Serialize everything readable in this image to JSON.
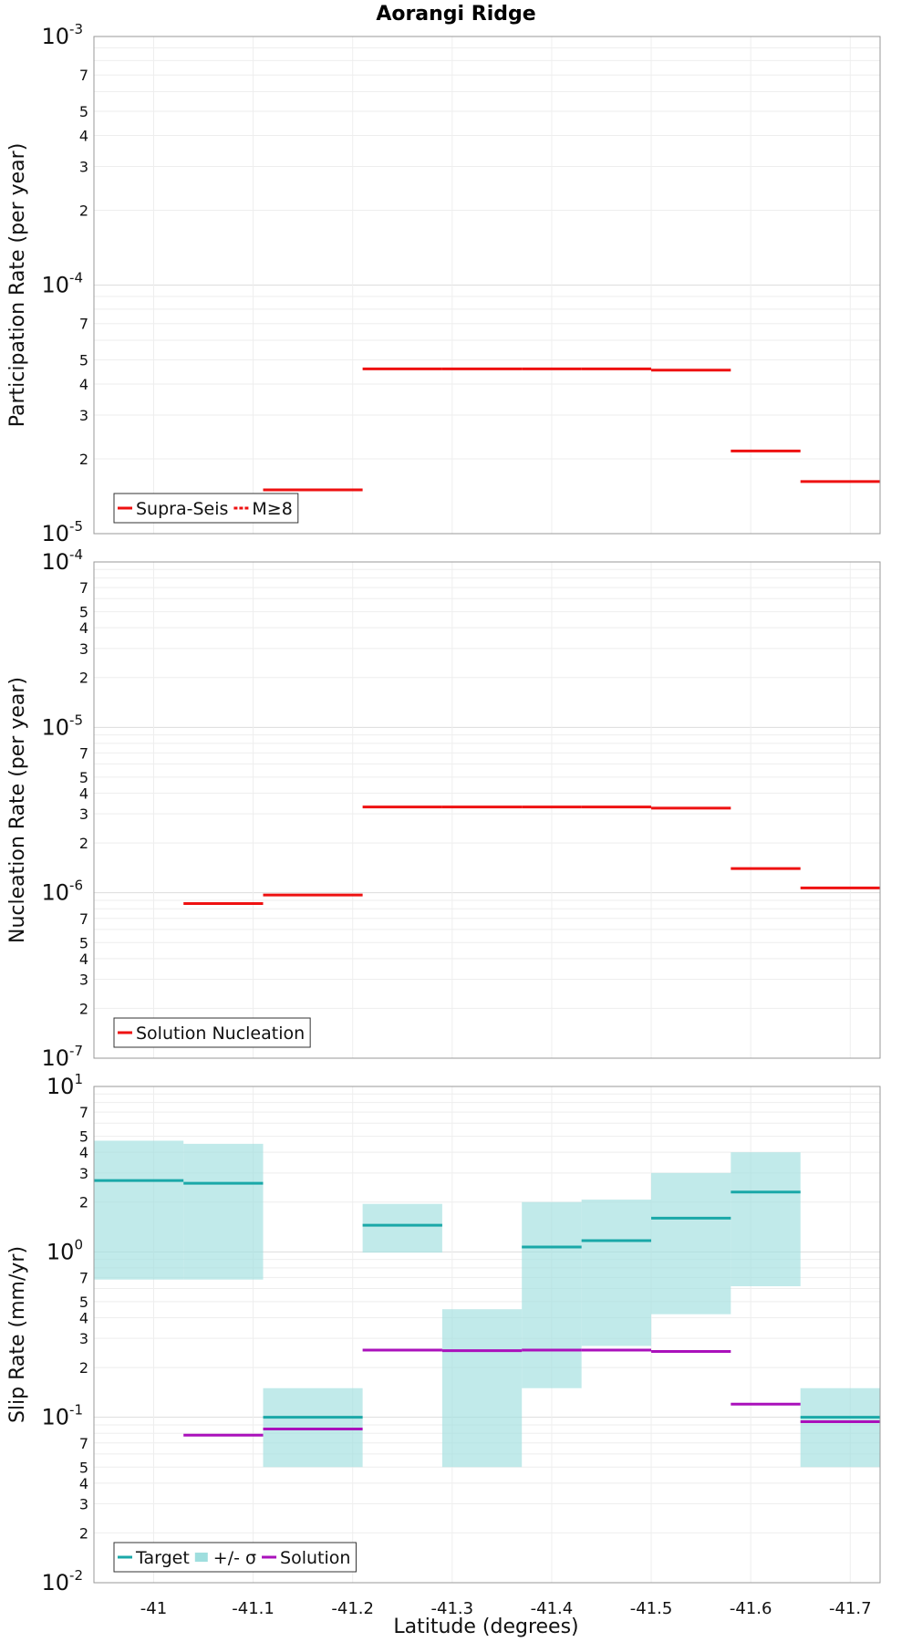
{
  "figure": {
    "title": "Aorangi Ridge",
    "xlabel": "Latitude (degrees)",
    "xticks": [
      "-41",
      "-41.1",
      "-41.2",
      "-41.3",
      "-41.4",
      "-41.5",
      "-41.6",
      "-41.7"
    ]
  },
  "colors": {
    "red": "#ee1111",
    "teal": "#1aa8a8",
    "band": "#9fdede",
    "purple": "#aa11bb"
  },
  "chart_data": [
    {
      "type": "line",
      "panel": "participation",
      "ylabel": "Participation Rate (per year)",
      "yscale": "log",
      "ylim": [
        1e-05,
        0.001
      ],
      "xlim": [
        -40.94,
        -41.73
      ],
      "legend": {
        "position": "bottom-left",
        "entries": [
          "Supra-Seis",
          "M≥8"
        ]
      },
      "series": [
        {
          "name": "Supra-Seis",
          "segments": [
            {
              "x": [
                -41.11,
                -41.21
              ],
              "y": 1.5e-05
            },
            {
              "x": [
                -41.21,
                -41.29
              ],
              "y": 4.6e-05
            },
            {
              "x": [
                -41.29,
                -41.37
              ],
              "y": 4.6e-05
            },
            {
              "x": [
                -41.37,
                -41.43
              ],
              "y": 4.6e-05
            },
            {
              "x": [
                -41.43,
                -41.5
              ],
              "y": 4.6e-05
            },
            {
              "x": [
                -41.5,
                -41.58
              ],
              "y": 4.55e-05
            },
            {
              "x": [
                -41.58,
                -41.65
              ],
              "y": 2.15e-05
            },
            {
              "x": [
                -41.65,
                -41.73
              ],
              "y": 1.62e-05
            }
          ]
        },
        {
          "name": "M≥8",
          "segments": []
        }
      ]
    },
    {
      "type": "line",
      "panel": "nucleation",
      "ylabel": "Nucleation Rate (per year)",
      "yscale": "log",
      "ylim": [
        1e-07,
        0.0001
      ],
      "xlim": [
        -40.94,
        -41.73
      ],
      "legend": {
        "position": "bottom-left",
        "entries": [
          "Solution Nucleation"
        ]
      },
      "series": [
        {
          "name": "Solution Nucleation",
          "segments": [
            {
              "x": [
                -41.03,
                -41.11
              ],
              "y": 8.6e-07
            },
            {
              "x": [
                -41.11,
                -41.21
              ],
              "y": 9.7e-07
            },
            {
              "x": [
                -41.21,
                -41.29
              ],
              "y": 3.3e-06
            },
            {
              "x": [
                -41.29,
                -41.37
              ],
              "y": 3.3e-06
            },
            {
              "x": [
                -41.37,
                -41.43
              ],
              "y": 3.3e-06
            },
            {
              "x": [
                -41.43,
                -41.5
              ],
              "y": 3.3e-06
            },
            {
              "x": [
                -41.5,
                -41.58
              ],
              "y": 3.25e-06
            },
            {
              "x": [
                -41.58,
                -41.65
              ],
              "y": 1.4e-06
            },
            {
              "x": [
                -41.65,
                -41.73
              ],
              "y": 1.07e-06
            }
          ]
        }
      ]
    },
    {
      "type": "line",
      "panel": "slip",
      "ylabel": "Slip Rate (mm/yr)",
      "yscale": "log",
      "ylim": [
        0.01,
        10
      ],
      "xlim": [
        -40.94,
        -41.73
      ],
      "legend": {
        "position": "bottom-left",
        "entries": [
          "Target",
          "+/- σ",
          "Solution"
        ]
      },
      "series": [
        {
          "name": "Target",
          "segments": [
            {
              "x": [
                -40.94,
                -41.03
              ],
              "y": 2.7,
              "low": 0.68,
              "high": 4.7
            },
            {
              "x": [
                -41.03,
                -41.11
              ],
              "y": 2.6,
              "low": 0.68,
              "high": 4.5
            },
            {
              "x": [
                -41.11,
                -41.21
              ],
              "y": 0.1,
              "low": 0.05,
              "high": 0.15
            },
            {
              "x": [
                -41.21,
                -41.29
              ],
              "y": 1.45,
              "low": 0.99,
              "high": 1.95
            },
            {
              "x": [
                -41.29,
                -41.37
              ],
              "y": null,
              "low": 0.05,
              "high": 0.45
            },
            {
              "x": [
                -41.37,
                -41.43
              ],
              "y": 1.07,
              "low": 0.15,
              "high": 2.0
            },
            {
              "x": [
                -41.43,
                -41.5
              ],
              "y": 1.17,
              "low": 0.27,
              "high": 2.07
            },
            {
              "x": [
                -41.5,
                -41.58
              ],
              "y": 1.6,
              "low": 0.42,
              "high": 3.0
            },
            {
              "x": [
                -41.58,
                -41.65
              ],
              "y": 2.3,
              "low": 0.62,
              "high": 4.0
            },
            {
              "x": [
                -41.65,
                -41.73
              ],
              "y": 0.1,
              "low": 0.05,
              "high": 0.15
            }
          ]
        },
        {
          "name": "Solution",
          "segments": [
            {
              "x": [
                -41.03,
                -41.11
              ],
              "y": 0.078
            },
            {
              "x": [
                -41.11,
                -41.21
              ],
              "y": 0.085
            },
            {
              "x": [
                -41.21,
                -41.29
              ],
              "y": 0.255
            },
            {
              "x": [
                -41.29,
                -41.37
              ],
              "y": 0.253
            },
            {
              "x": [
                -41.37,
                -41.43
              ],
              "y": 0.255
            },
            {
              "x": [
                -41.43,
                -41.5
              ],
              "y": 0.255
            },
            {
              "x": [
                -41.5,
                -41.58
              ],
              "y": 0.25
            },
            {
              "x": [
                -41.58,
                -41.65
              ],
              "y": 0.12
            },
            {
              "x": [
                -41.65,
                -41.73
              ],
              "y": 0.094
            }
          ]
        }
      ]
    }
  ]
}
